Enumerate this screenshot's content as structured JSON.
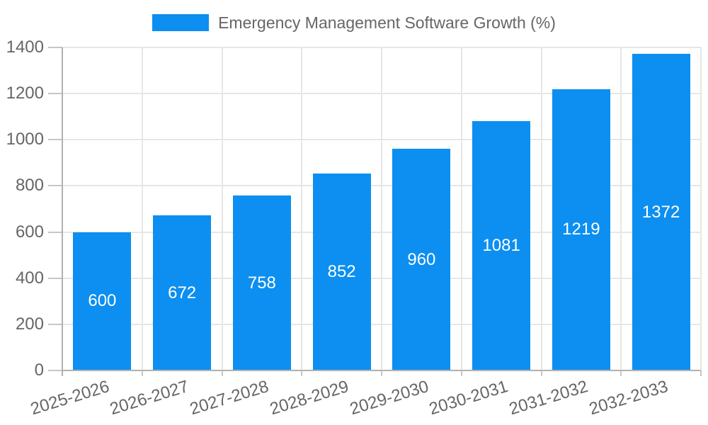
{
  "chart_data": {
    "type": "bar",
    "title": "Emergency Management Software Growth (%)",
    "legend_position": "top",
    "categories": [
      "2025-2026",
      "2026-2027",
      "2027-2028",
      "2028-2029",
      "2029-2030",
      "2030-2031",
      "2031-2032",
      "2032-2033"
    ],
    "values": [
      600,
      672,
      758,
      852,
      960,
      1081,
      1219,
      1372
    ],
    "xlabel": "",
    "ylabel": "",
    "ylim": [
      0,
      1400
    ],
    "yticks": [
      0,
      200,
      400,
      600,
      800,
      1000,
      1200,
      1400
    ],
    "grid": true,
    "colors": {
      "bar": "#0c8ff0",
      "value_label": "#ffffff",
      "axis_text": "#666666",
      "gridline": "#e6e6e6",
      "axis_line": "#b0b0b0",
      "tick_mark": "#c6c6c6"
    }
  }
}
